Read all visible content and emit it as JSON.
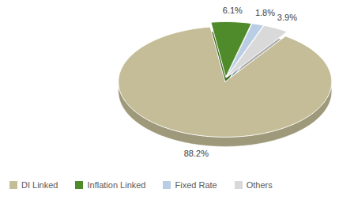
{
  "chart_data": {
    "type": "pie",
    "categories": [
      "DI Linked",
      "Inflation Linked",
      "Fixed Rate",
      "Others"
    ],
    "values": [
      88.2,
      6.1,
      1.8,
      3.9
    ],
    "value_labels": [
      "88.2%",
      "6.1%",
      "1.8%",
      "3.9%"
    ],
    "colors": [
      "#c4bd97",
      "#4f8a2b",
      "#b9cde5",
      "#d9d9d9"
    ],
    "data_labels": true,
    "legend": "bottom"
  }
}
